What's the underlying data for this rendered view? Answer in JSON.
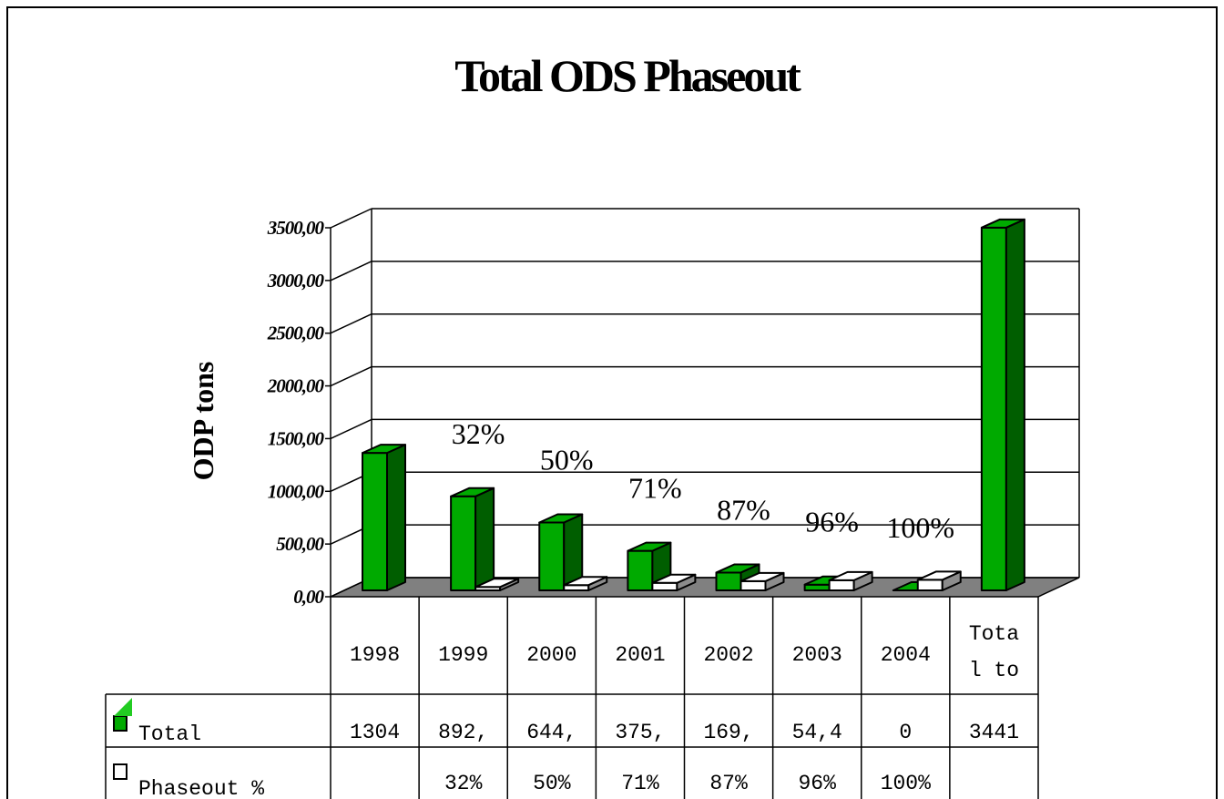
{
  "chart_data": {
    "type": "bar3d",
    "title": "Total ODS Phaseout",
    "y_label": "ODP tons",
    "categories": [
      "1998",
      "1999",
      "2000",
      "2001",
      "2002",
      "2003",
      "2004",
      "Total to"
    ],
    "series": [
      {
        "name": "Total",
        "color": "#00aa00",
        "values": [
          1304,
          892,
          644,
          375,
          169,
          54.4,
          0,
          3441
        ],
        "value_labels": [
          "1304",
          "892,",
          "644,",
          "375,",
          "169,",
          "54,4",
          "0",
          "3441"
        ]
      },
      {
        "name": "Phaseout %",
        "color": "#ffffff",
        "values": [
          null,
          32,
          50,
          71,
          87,
          96,
          100,
          null
        ],
        "value_labels": [
          null,
          "32%",
          "50%",
          "71%",
          "87%",
          "96%",
          "100%",
          null
        ]
      }
    ],
    "ylim": [
      0,
      3500
    ],
    "yticks": [
      {
        "value": 0,
        "label": "0,00"
      },
      {
        "value": 500,
        "label": "500,00"
      },
      {
        "value": 1000,
        "label": "1000,00"
      },
      {
        "value": 1500,
        "label": "1500,00"
      },
      {
        "value": 2000,
        "label": "2000,00"
      },
      {
        "value": 2500,
        "label": "2500,00"
      },
      {
        "value": 3000,
        "label": "3000,00"
      },
      {
        "value": 3500,
        "label": "3500,00"
      }
    ],
    "grid": true
  }
}
